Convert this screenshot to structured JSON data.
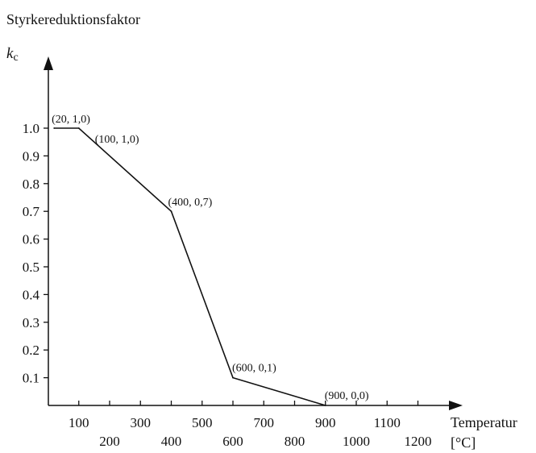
{
  "chart_data": {
    "type": "line",
    "title": "Styrkereduktionsfaktor",
    "ylabel": "k",
    "ylabel_subscript": "c",
    "xlabel": "Temperatur",
    "xunit": "[°C]",
    "x": [
      20,
      100,
      400,
      600,
      900
    ],
    "y": [
      1.0,
      1.0,
      0.7,
      0.1,
      0.0
    ],
    "annotations": [
      "(20, 1,0)",
      "(100, 1,0)",
      "(400, 0,7)",
      "(600, 0,1)",
      "(900, 0,0)"
    ],
    "xlim": [
      0,
      1300
    ],
    "ylim": [
      0,
      1.1
    ],
    "yticks": [
      0.1,
      0.2,
      0.3,
      0.4,
      0.5,
      0.6,
      0.7,
      0.8,
      0.9,
      1.0
    ],
    "ytick_labels": [
      "0.1",
      "0.2",
      "0.3",
      "0.4",
      "0.5",
      "0.6",
      "0.7",
      "0.8",
      "0.9",
      "1.0"
    ],
    "xticks": [
      100,
      200,
      300,
      400,
      500,
      600,
      700,
      800,
      900,
      1000,
      1100,
      1200
    ],
    "xtick_labels": [
      "100",
      "200",
      "300",
      "400",
      "500",
      "600",
      "700",
      "800",
      "900",
      "1000",
      "1100",
      "1200"
    ],
    "grid": false,
    "line_color": "#111111"
  }
}
